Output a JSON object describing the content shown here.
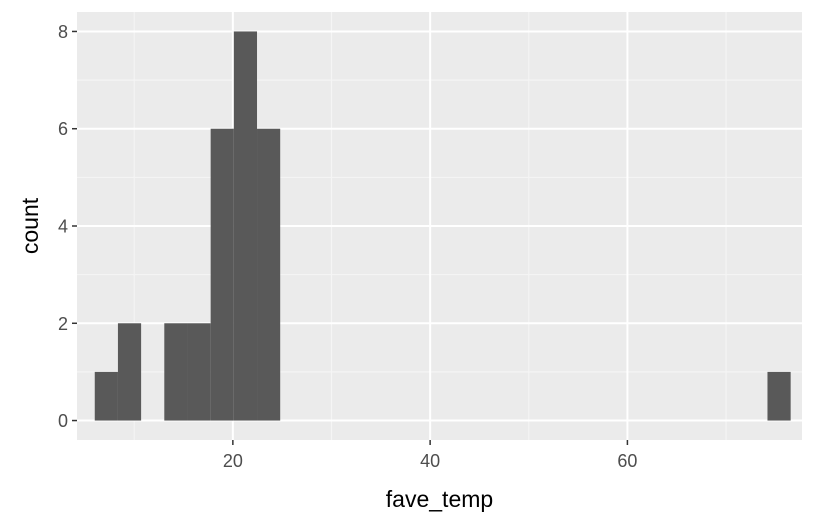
{
  "chart_data": {
    "type": "bar",
    "xlabel": "fave_temp",
    "ylabel": "count",
    "xlim": [
      4.2,
      77.7
    ],
    "ylim": [
      -0.4,
      8.4
    ],
    "x_ticks": [
      20,
      40,
      60
    ],
    "y_ticks": [
      0,
      2,
      4,
      6,
      8
    ],
    "grid": true,
    "bins": [
      {
        "x0": 6.0,
        "x1": 8.35,
        "count": 1
      },
      {
        "x0": 8.35,
        "x1": 10.7,
        "count": 2
      },
      {
        "x0": 13.05,
        "x1": 15.4,
        "count": 2
      },
      {
        "x0": 15.4,
        "x1": 17.75,
        "count": 2
      },
      {
        "x0": 17.75,
        "x1": 20.1,
        "count": 6
      },
      {
        "x0": 20.1,
        "x1": 22.45,
        "count": 8
      },
      {
        "x0": 22.45,
        "x1": 24.8,
        "count": 6
      },
      {
        "x0": 74.2,
        "x1": 76.55,
        "count": 1
      }
    ],
    "colors": {
      "panel": "#EBEBEB",
      "grid_major": "#FFFFFF",
      "grid_minor": "#F5F5F5",
      "bar": "#595959"
    }
  }
}
